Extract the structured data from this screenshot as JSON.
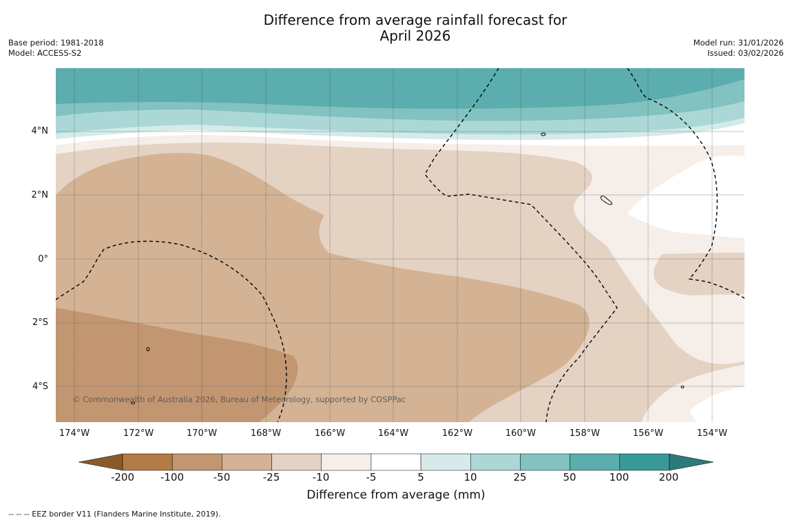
{
  "title": {
    "line1": "Difference from average rainfall forecast for",
    "line2": "April 2026"
  },
  "meta_left": {
    "base_period": "Base period: 1981-2018",
    "model": "Model: ACCESS-S2"
  },
  "meta_right": {
    "model_run": "Model run: 31/01/2026",
    "issued": "Issued: 03/02/2026"
  },
  "map": {
    "lat_labels": [
      "4°N",
      "2°N",
      "0°",
      "2°S",
      "4°S"
    ],
    "lon_labels": [
      "174°W",
      "172°W",
      "170°W",
      "168°W",
      "166°W",
      "164°W",
      "162°W",
      "160°W",
      "158°W",
      "156°W",
      "154°W"
    ],
    "copyright": "© Commonwealth of Australia 2026, Bureau of Meteorology, supported by COSPPac"
  },
  "colorbar": {
    "ticks": [
      "-200",
      "-100",
      "-50",
      "-25",
      "-10",
      "-5",
      "5",
      "10",
      "25",
      "50",
      "100",
      "200"
    ],
    "colors": {
      "extend_low": "#8b5a2b",
      "bins": [
        "#b27b45",
        "#c29671",
        "#d3b394",
        "#e4d2c3",
        "#f5eee9",
        "#ffffff",
        "#d4ebe9",
        "#abd8d7",
        "#82c2c1",
        "#5cadad",
        "#389998"
      ],
      "extend_high": "#2c7a79"
    },
    "label": "Difference from average (mm)"
  },
  "footnote": "--  --  -- EEZ border V11 (Flanders Marine Institute, 2019)."
}
